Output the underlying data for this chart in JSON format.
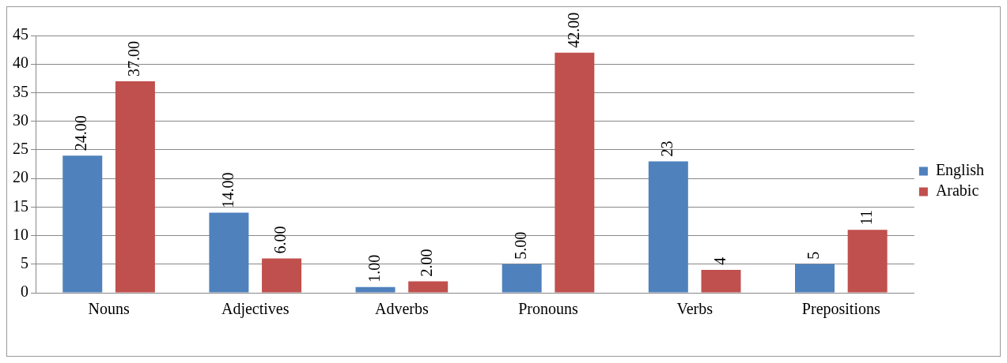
{
  "chart_data": {
    "type": "bar",
    "categories": [
      "Nouns",
      "Adjectives",
      "Adverbs",
      "Pronouns",
      "Verbs",
      "Prepositions"
    ],
    "series": [
      {
        "name": "English",
        "color": "#4f81bd",
        "values": [
          24,
          14,
          1,
          5,
          23,
          5
        ],
        "value_labels": [
          "24.00",
          "14.00",
          "1.00",
          "5.00",
          "23",
          "5"
        ]
      },
      {
        "name": "Arabic",
        "color": "#c0504d",
        "values": [
          37,
          6,
          2,
          42,
          4,
          11
        ],
        "value_labels": [
          "37.00",
          "6.00",
          "2.00",
          "42.00",
          "4",
          "11"
        ]
      }
    ],
    "ylim": [
      0,
      45
    ],
    "yticks": [
      0,
      5,
      10,
      15,
      20,
      25,
      30,
      35,
      40,
      45
    ],
    "grid": "y",
    "legend": "right"
  }
}
